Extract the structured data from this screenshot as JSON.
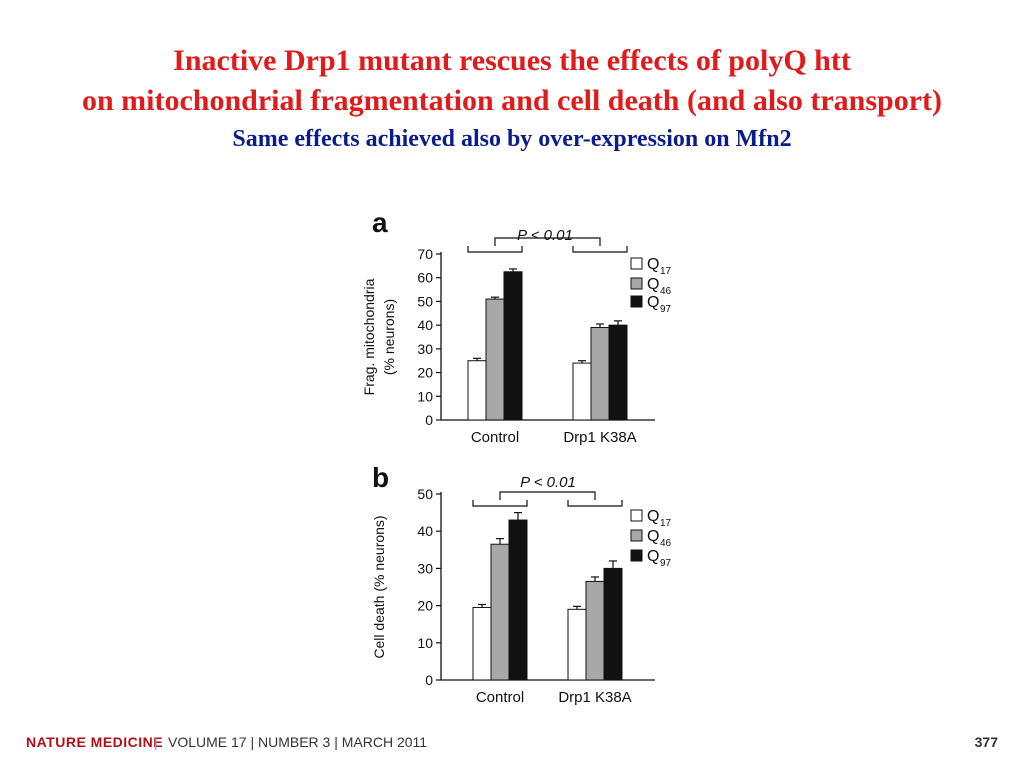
{
  "slide": {
    "title_line1": "Inactive Drp1 mutant rescues the effects of polyQ htt",
    "title_line2": "on mitochondrial fragmentation and cell death (and also transport)",
    "subtitle": "Same effects achieved also by over-expression on Mfn2"
  },
  "footer": {
    "journal": "NATURE MEDICINE",
    "separator": "|",
    "volume_info": "VOLUME 17 | NUMBER 3 | MARCH 2011",
    "page": "377"
  },
  "colors": {
    "title": "#e01b1b",
    "subtitle": "#0b1d8c",
    "journal": "#b30f18"
  },
  "chart_data": [
    {
      "type": "bar",
      "panel": "a",
      "categories": [
        "Control",
        "Drp1 K38A"
      ],
      "series": [
        {
          "name": "Q",
          "sub": "17",
          "color": "#ffffff",
          "values": [
            25,
            24
          ],
          "errors": [
            1,
            1
          ]
        },
        {
          "name": "Q",
          "sub": "46",
          "color": "#a8a8a8",
          "values": [
            51,
            39
          ],
          "errors": [
            0.8,
            1.5
          ]
        },
        {
          "name": "Q",
          "sub": "97",
          "color": "#111111",
          "values": [
            62.5,
            40
          ],
          "errors": [
            1.2,
            1.8
          ]
        }
      ],
      "ylabel": "Frag. mitochondria",
      "ylabel2": "(% neurons)",
      "ylim": [
        0,
        70
      ],
      "yticks": [
        0,
        10,
        20,
        30,
        40,
        50,
        60,
        70
      ],
      "annotation": "P < 0.01",
      "legend": "top-right"
    },
    {
      "type": "bar",
      "panel": "b",
      "categories": [
        "Control",
        "Drp1 K38A"
      ],
      "series": [
        {
          "name": "Q",
          "sub": "17",
          "color": "#ffffff",
          "values": [
            19.5,
            19
          ],
          "errors": [
            0.8,
            0.8
          ]
        },
        {
          "name": "Q",
          "sub": "46",
          "color": "#a8a8a8",
          "values": [
            36.5,
            26.5
          ],
          "errors": [
            1.5,
            1.2
          ]
        },
        {
          "name": "Q",
          "sub": "97",
          "color": "#111111",
          "values": [
            43,
            30
          ],
          "errors": [
            2,
            2
          ]
        }
      ],
      "ylabel": "Cell death (% neurons)",
      "ylim": [
        0,
        50
      ],
      "yticks": [
        0,
        10,
        20,
        30,
        40,
        50
      ],
      "annotation": "P < 0.01",
      "legend": "top-right"
    }
  ]
}
